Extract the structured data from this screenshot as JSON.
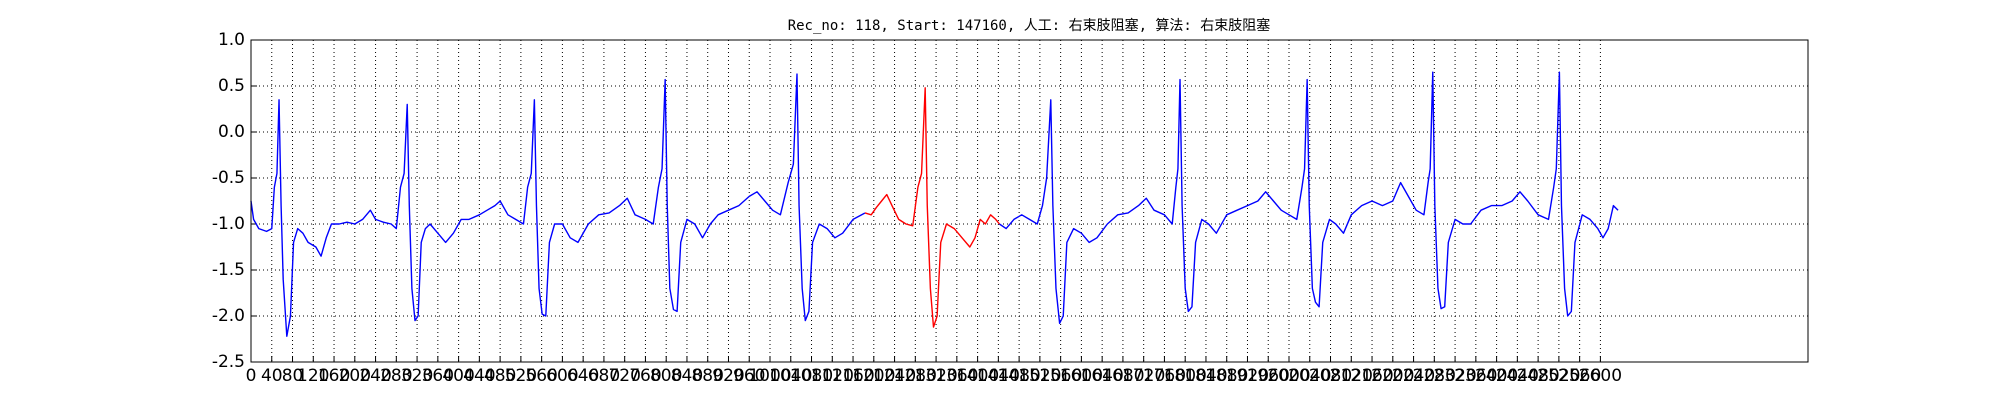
{
  "chart_data": {
    "type": "line",
    "title": "Rec_no: 118, Start: 147160, 人工: 右束肢阻塞, 算法: 右束肢阻塞",
    "xlim": [
      0,
      3000
    ],
    "ylim": [
      -2.5,
      1.0
    ],
    "yticks": [
      {
        "value": -2.5,
        "label": "-2.5"
      },
      {
        "value": -2.0,
        "label": "-2.0"
      },
      {
        "value": -1.5,
        "label": "-1.5"
      },
      {
        "value": -1.0,
        "label": "-1.0"
      },
      {
        "value": -0.5,
        "label": "-0.5"
      },
      {
        "value": 0.0,
        "label": "0.0"
      },
      {
        "value": 0.5,
        "label": "0.5"
      },
      {
        "value": 1.0,
        "label": "1.0"
      }
    ],
    "xticks": [
      0,
      40,
      80,
      120,
      160,
      200,
      240,
      280,
      320,
      360,
      400,
      440,
      480,
      520,
      560,
      600,
      640,
      680,
      720,
      760,
      800,
      840,
      880,
      920,
      960,
      1000,
      1040,
      1080,
      1120,
      1160,
      1200,
      1240,
      1280,
      1320,
      1360,
      1400,
      1440,
      1480,
      1520,
      1560,
      1600,
      1640,
      1680,
      1720,
      1760,
      1800,
      1840,
      1880,
      1920,
      1960,
      2000,
      2040,
      2080,
      2120,
      2160,
      2200,
      2240,
      2280,
      2320,
      2360,
      2400,
      2440,
      2480,
      2520,
      2560,
      2600
    ],
    "grid": true,
    "series": [
      {
        "color": "#0000ff",
        "x": [
          0,
          5,
          15,
          30,
          40,
          45,
          50,
          54,
          58,
          62,
          69,
          76,
          82,
          90,
          100,
          110,
          125,
          135,
          145,
          155,
          170,
          185,
          200,
          215,
          230,
          240,
          255,
          270,
          280,
          288,
          295,
          301,
          305,
          310,
          316,
          322,
          328,
          336,
          345,
          360,
          375,
          390,
          405,
          420,
          440,
          455,
          470,
          480,
          495,
          510,
          525,
          533,
          540,
          546,
          550,
          555,
          561,
          568,
          575,
          585,
          600,
          615,
          630,
          650,
          670,
          690,
          710,
          725,
          740,
          760,
          775,
          785,
          792,
          798,
          802,
          807,
          814,
          821,
          828,
          840,
          855,
          870,
          885,
          900,
          920,
          940,
          960,
          975,
          990,
          1005,
          1020,
          1035,
          1045,
          1052,
          1056,
          1062,
          1068,
          1075,
          1082,
          1095,
          1110,
          1125,
          1140,
          1160,
          1183,
          1300,
          1442,
          1455,
          1470,
          1485,
          1500,
          1515,
          1525,
          1533,
          1541,
          1545,
          1551,
          1558,
          1565,
          1572,
          1585,
          1600,
          1615,
          1630,
          1650,
          1670,
          1690,
          1710,
          1725,
          1740,
          1760,
          1775,
          1782,
          1786,
          1790,
          1794,
          1800,
          1806,
          1813,
          1820,
          1832,
          1845,
          1860,
          1880,
          1900,
          1920,
          1940,
          1955,
          1970,
          1985,
          2000,
          2015,
          2025,
          2030,
          2035,
          2039,
          2045,
          2051,
          2058,
          2065,
          2078,
          2090,
          2105,
          2120,
          2140,
          2160,
          2180,
          2200,
          2215,
          2230,
          2245,
          2260,
          2268,
          2272,
          2277,
          2281,
          2287,
          2293,
          2300,
          2307,
          2320,
          2335,
          2350,
          2370,
          2390,
          2410,
          2430,
          2445,
          2460,
          2480,
          2500,
          2510,
          2515,
          2521,
          2525,
          2531,
          2537,
          2544,
          2551,
          2565,
          2580,
          2595,
          2605,
          2615,
          2625,
          2634
        ],
        "values": [
          -0.75,
          -0.95,
          -1.05,
          -1.08,
          -1.05,
          -0.6,
          -0.45,
          0.35,
          -0.8,
          -1.6,
          -2.22,
          -2.0,
          -1.2,
          -1.05,
          -1.1,
          -1.2,
          -1.25,
          -1.35,
          -1.15,
          -1.0,
          -1.0,
          -0.98,
          -1.0,
          -0.95,
          -0.85,
          -0.95,
          -0.98,
          -1.0,
          -1.05,
          -0.6,
          -0.45,
          0.3,
          -0.8,
          -1.7,
          -2.05,
          -2.0,
          -1.2,
          -1.05,
          -1.0,
          -1.1,
          -1.2,
          -1.1,
          -0.95,
          -0.95,
          -0.9,
          -0.85,
          -0.8,
          -0.75,
          -0.9,
          -0.95,
          -1.0,
          -0.6,
          -0.45,
          0.35,
          -0.8,
          -1.7,
          -1.98,
          -2.0,
          -1.2,
          -1.0,
          -1.0,
          -1.15,
          -1.2,
          -1.0,
          -0.9,
          -0.88,
          -0.8,
          -0.72,
          -0.9,
          -0.95,
          -1.0,
          -0.6,
          -0.4,
          0.57,
          -0.8,
          -1.7,
          -1.93,
          -1.95,
          -1.2,
          -0.95,
          -1.0,
          -1.15,
          -1.0,
          -0.9,
          -0.85,
          -0.8,
          -0.7,
          -0.65,
          -0.75,
          -0.85,
          -0.9,
          -0.55,
          -0.35,
          0.63,
          -0.8,
          -1.7,
          -2.05,
          -1.95,
          -1.2,
          -1.0,
          -1.05,
          -1.15,
          -1.1,
          -0.95,
          -0.88,
          null,
          -1.0,
          -1.05,
          -0.95,
          -0.9,
          -0.95,
          -1.0,
          -0.8,
          -0.5,
          0.35,
          -0.8,
          -1.7,
          -2.08,
          -2.0,
          -1.2,
          -1.05,
          -1.1,
          -1.2,
          -1.15,
          -1.0,
          -0.9,
          -0.88,
          -0.8,
          -0.72,
          -0.85,
          -0.9,
          -1.0,
          -0.6,
          -0.4,
          0.57,
          -0.8,
          -1.7,
          -1.95,
          -1.9,
          -1.2,
          -0.95,
          -1.0,
          -1.1,
          -0.9,
          -0.85,
          -0.8,
          -0.75,
          -0.65,
          -0.75,
          -0.85,
          -0.9,
          -0.95,
          -0.6,
          -0.4,
          0.57,
          -0.8,
          -1.7,
          -1.85,
          -1.9,
          -1.2,
          -0.95,
          -1.0,
          -1.1,
          -0.9,
          -0.8,
          -0.75,
          -0.8,
          -0.75,
          -0.55,
          -0.7,
          -0.85,
          -0.9,
          -0.55,
          -0.4,
          0.65,
          -0.8,
          -1.7,
          -1.92,
          -1.9,
          -1.2,
          -0.95,
          -1.0,
          -1.0,
          -0.85,
          -0.8,
          -0.8,
          -0.75,
          -0.65,
          -0.75,
          -0.9,
          -0.95,
          -0.6,
          -0.4,
          0.65,
          -0.8,
          -1.7,
          -2.0,
          -1.95,
          -1.2,
          -0.9,
          -0.95,
          -1.05,
          -1.15,
          -1.05,
          -0.8,
          -0.85
        ]
      },
      {
        "color": "#ff0000",
        "x": [
          1183,
          1195,
          1205,
          1215,
          1225,
          1235,
          1248,
          1262,
          1275,
          1285,
          1292,
          1299,
          1303,
          1309,
          1315,
          1322,
          1329,
          1340,
          1355,
          1370,
          1385,
          1395,
          1405,
          1415,
          1425,
          1435,
          1442
        ],
        "values": [
          -0.88,
          -0.9,
          -0.82,
          -0.75,
          -0.68,
          -0.8,
          -0.95,
          -1.0,
          -1.02,
          -0.6,
          -0.45,
          0.48,
          -0.8,
          -1.7,
          -2.12,
          -2.0,
          -1.2,
          -1.0,
          -1.05,
          -1.15,
          -1.25,
          -1.15,
          -0.95,
          -1.0,
          -0.9,
          -0.95,
          -1.0
        ]
      }
    ]
  }
}
